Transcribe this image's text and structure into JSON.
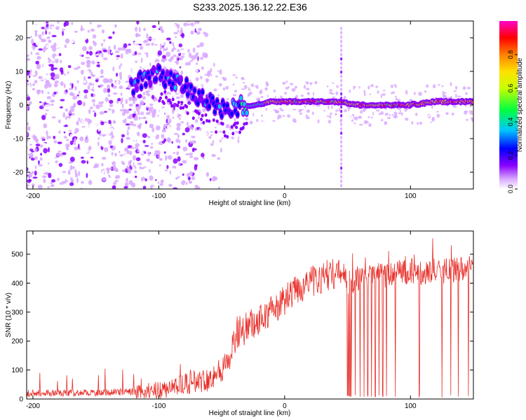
{
  "title": "S233.2025.136.12.22.E36",
  "chart_data": [
    {
      "type": "heatmap",
      "xlabel": "Height of straight line (km)",
      "ylabel": "Frequency (Hz)",
      "xlim": [
        -205,
        150
      ],
      "ylim": [
        -25,
        25
      ],
      "x_ticks": [
        -200,
        -100,
        0,
        100
      ],
      "y_ticks": [
        -20,
        -10,
        0,
        10,
        20
      ],
      "colorbar": {
        "label": "Normalized spectral amplitude",
        "range": [
          0,
          1
        ],
        "ticks": [
          0.0,
          0.2,
          0.4,
          0.6,
          0.8
        ],
        "colormap": "white-violet-blue-cyan-green-yellow-orange-red-magenta"
      },
      "ridge": {
        "x": [
          -122,
          -112,
          -100,
          -90,
          -80,
          -70,
          -60,
          -55,
          -50,
          -45,
          -40,
          -35,
          -25,
          -10,
          0,
          20,
          40,
          60,
          80,
          100,
          120,
          150
        ],
        "y": [
          5,
          8,
          9,
          7,
          6,
          3,
          1,
          0,
          -1,
          -2,
          -1,
          -0.5,
          0,
          1,
          1,
          1,
          1,
          0,
          0,
          0,
          1,
          1
        ]
      },
      "noise_region_x": [
        -205,
        -85
      ],
      "impulse_line_x": 45
    },
    {
      "type": "line",
      "xlabel": "Height of straight line (km)",
      "ylabel": "SNR (10 * v/v)",
      "xlim": [
        -205,
        150
      ],
      "ylim": [
        0,
        580
      ],
      "x_ticks": [
        -200,
        -100,
        0,
        100
      ],
      "y_ticks": [
        0,
        100,
        200,
        300,
        400,
        500
      ],
      "color": "#e8302a",
      "series": [
        {
          "x": [
            -205,
            -150,
            -120,
            -100,
            -80,
            -60,
            -45,
            -38,
            -32,
            -25,
            -15,
            -5,
            5,
            15,
            25,
            35,
            45,
            50,
            60,
            80,
            100,
            120,
            150
          ],
          "y": [
            20,
            22,
            25,
            30,
            50,
            70,
            120,
            230,
            240,
            260,
            290,
            320,
            360,
            395,
            410,
            430,
            440,
            400,
            420,
            430,
            440,
            440,
            450
          ]
        }
      ],
      "dropouts_x": [
        50,
        51,
        52,
        53,
        56,
        60,
        63,
        66,
        69,
        72,
        75,
        78,
        81,
        88,
        107,
        125,
        132,
        138,
        146
      ]
    }
  ]
}
